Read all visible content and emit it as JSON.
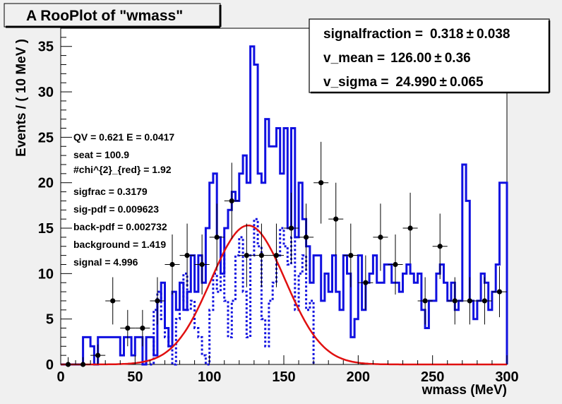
{
  "chart_data": {
    "type": "line",
    "title": "A RooPlot of \"wmass\"",
    "xlabel": "wmass (MeV)",
    "ylabel": "Events / ( 10 MeV )",
    "xlim": [
      0,
      300
    ],
    "ylim": [
      0,
      37
    ],
    "x_ticks": [
      "0",
      "50",
      "100",
      "150",
      "200",
      "250",
      "300"
    ],
    "y_ticks": [
      "0",
      "5",
      "10",
      "15",
      "20",
      "25",
      "30",
      "35"
    ],
    "grid": false,
    "colors": {
      "blue_histograms": "#1010e0",
      "red_curve": "#e01010",
      "points": "#000000",
      "frame_background": "#ffffff",
      "page_background": "#f0f0f0"
    },
    "stats_box": [
      {
        "name": "signalfraction =",
        "value": "0.318",
        "error": "0.038"
      },
      {
        "name": "v_mean =",
        "value": "126.00",
        "error": "0.36"
      },
      {
        "name": "v_sigma =",
        "value": "24.990",
        "error": "0.065"
      }
    ],
    "annotations": [
      "QV = 0.621  E = 0.0417",
      "seat = 100.9",
      "#chi^{2}_{red} = 1.92",
      "sigfrac = 0.3179",
      "sig-pdf = 0.009623",
      "back-pdf = 0.002732",
      "background = 1.419",
      "signal = 4.996"
    ],
    "series": [
      {
        "type": "step",
        "style": "solid",
        "bin_width": 2.5,
        "bins": [
          [
            0,
            0
          ],
          [
            15,
            3
          ],
          [
            20,
            2
          ],
          [
            22.5,
            0
          ],
          [
            25,
            3
          ],
          [
            40,
            1
          ],
          [
            42.5,
            3
          ],
          [
            47.5,
            1
          ],
          [
            50,
            3
          ],
          [
            55,
            0
          ],
          [
            57.5,
            3
          ],
          [
            62.5,
            1
          ],
          [
            65,
            7
          ],
          [
            67.5,
            9
          ],
          [
            70,
            4
          ],
          [
            72.5,
            2
          ],
          [
            75,
            8
          ],
          [
            77.5,
            6
          ],
          [
            80,
            9
          ],
          [
            82.5,
            6
          ],
          [
            85,
            8
          ],
          [
            87.5,
            12
          ],
          [
            90,
            8
          ],
          [
            92.5,
            12
          ],
          [
            95,
            9
          ],
          [
            97.5,
            15
          ],
          [
            100,
            20
          ],
          [
            102.5,
            21
          ],
          [
            105,
            14
          ],
          [
            107.5,
            10
          ],
          [
            110,
            15
          ],
          [
            112.5,
            17
          ],
          [
            115,
            19
          ],
          [
            117.5,
            18
          ],
          [
            120,
            21
          ],
          [
            122.5,
            23
          ],
          [
            125,
            20
          ],
          [
            127.5,
            35
          ],
          [
            130,
            33
          ],
          [
            132.5,
            21
          ],
          [
            135,
            20
          ],
          [
            137.5,
            27
          ],
          [
            140,
            24
          ],
          [
            142.5,
            24
          ],
          [
            145,
            26
          ],
          [
            147.5,
            21
          ],
          [
            150,
            26
          ],
          [
            152.5,
            15
          ],
          [
            155,
            26
          ],
          [
            157.5,
            14
          ],
          [
            160,
            20
          ],
          [
            162.5,
            16
          ],
          [
            165,
            13
          ],
          [
            167.5,
            9
          ],
          [
            170,
            12
          ],
          [
            172.5,
            12
          ],
          [
            175,
            7
          ],
          [
            177.5,
            10
          ],
          [
            180,
            8
          ],
          [
            182.5,
            12
          ],
          [
            185,
            8
          ],
          [
            187.5,
            6
          ],
          [
            190,
            12
          ],
          [
            192.5,
            10
          ],
          [
            195,
            3
          ],
          [
            197.5,
            5
          ],
          [
            200,
            12
          ],
          [
            202.5,
            6
          ],
          [
            205,
            9
          ],
          [
            207.5,
            10
          ],
          [
            210,
            12
          ],
          [
            212.5,
            9
          ],
          [
            215,
            9
          ],
          [
            217.5,
            11
          ],
          [
            220,
            11
          ],
          [
            222.5,
            9
          ],
          [
            225,
            9
          ],
          [
            227.5,
            8
          ],
          [
            230,
            10
          ],
          [
            232.5,
            11
          ],
          [
            235,
            10
          ],
          [
            237.5,
            9
          ],
          [
            240,
            10
          ],
          [
            242.5,
            6
          ],
          [
            245,
            4
          ],
          [
            247.5,
            7
          ],
          [
            250,
            7
          ],
          [
            252.5,
            10
          ],
          [
            255,
            11
          ],
          [
            257.5,
            9
          ],
          [
            260,
            7
          ],
          [
            262.5,
            9
          ],
          [
            265,
            6
          ],
          [
            267.5,
            7
          ],
          [
            270,
            22
          ],
          [
            272.5,
            18
          ],
          [
            275,
            7
          ],
          [
            277.5,
            5
          ],
          [
            280,
            7
          ],
          [
            282.5,
            10
          ],
          [
            285,
            9
          ],
          [
            287.5,
            6
          ],
          [
            290,
            8
          ],
          [
            292.5,
            11
          ],
          [
            295,
            20
          ],
          [
            297.5,
            20
          ],
          [
            300,
            0
          ]
        ]
      },
      {
        "type": "step",
        "style": "dotted",
        "bin_width": 2.5,
        "bins": [
          [
            60,
            0
          ],
          [
            62.5,
            6
          ],
          [
            65,
            8
          ],
          [
            67.5,
            5
          ],
          [
            70,
            3
          ],
          [
            72.5,
            2
          ],
          [
            75,
            0
          ],
          [
            77.5,
            5
          ],
          [
            80,
            7
          ],
          [
            82.5,
            10
          ],
          [
            85,
            6
          ],
          [
            87.5,
            7
          ],
          [
            90,
            4
          ],
          [
            92.5,
            3
          ],
          [
            95,
            1
          ],
          [
            97.5,
            0
          ],
          [
            100,
            6
          ],
          [
            102.5,
            10
          ],
          [
            105,
            8
          ],
          [
            107.5,
            12
          ],
          [
            110,
            7
          ],
          [
            112.5,
            3
          ],
          [
            115,
            7
          ],
          [
            117.5,
            12
          ],
          [
            120,
            14
          ],
          [
            122.5,
            8
          ],
          [
            125,
            3
          ],
          [
            127.5,
            12
          ],
          [
            130,
            16
          ],
          [
            132.5,
            13
          ],
          [
            135,
            5
          ],
          [
            137.5,
            2
          ],
          [
            140,
            7
          ],
          [
            142.5,
            9
          ],
          [
            145,
            12
          ],
          [
            147.5,
            15
          ],
          [
            150,
            13
          ],
          [
            152.5,
            11
          ],
          [
            155,
            14
          ],
          [
            157.5,
            6
          ],
          [
            160,
            10
          ],
          [
            162.5,
            12
          ],
          [
            165,
            6
          ],
          [
            167.5,
            7
          ],
          [
            170,
            0
          ]
        ]
      },
      {
        "type": "curve",
        "shape": "gaussian",
        "mean": 126.0,
        "sigma": 24.99,
        "peak": 15.3
      },
      {
        "type": "points",
        "points": [
          [
            5,
            0,
            0.8
          ],
          [
            15,
            0,
            0.8
          ],
          [
            25,
            1,
            1.2
          ],
          [
            35,
            7,
            2.6
          ],
          [
            45,
            4,
            2.0
          ],
          [
            55,
            4,
            2.0
          ],
          [
            65,
            7,
            2.6
          ],
          [
            75,
            11,
            3.3
          ],
          [
            85,
            12,
            3.5
          ],
          [
            95,
            11,
            3.3
          ],
          [
            105,
            14,
            3.7
          ],
          [
            115,
            18,
            4.2
          ],
          [
            125,
            12,
            3.5
          ],
          [
            135,
            12,
            3.5
          ],
          [
            145,
            12,
            3.5
          ],
          [
            155,
            15,
            3.9
          ],
          [
            165,
            14,
            3.7
          ],
          [
            175,
            20,
            4.5
          ],
          [
            185,
            16,
            4.0
          ],
          [
            195,
            12,
            3.5
          ],
          [
            205,
            9,
            3.0
          ],
          [
            215,
            14,
            3.7
          ],
          [
            225,
            11,
            3.3
          ],
          [
            235,
            15,
            3.9
          ],
          [
            245,
            7,
            2.6
          ],
          [
            255,
            13,
            3.6
          ],
          [
            265,
            7,
            2.6
          ],
          [
            275,
            7,
            2.6
          ],
          [
            285,
            7,
            2.6
          ],
          [
            295,
            8,
            2.8
          ]
        ]
      }
    ]
  }
}
